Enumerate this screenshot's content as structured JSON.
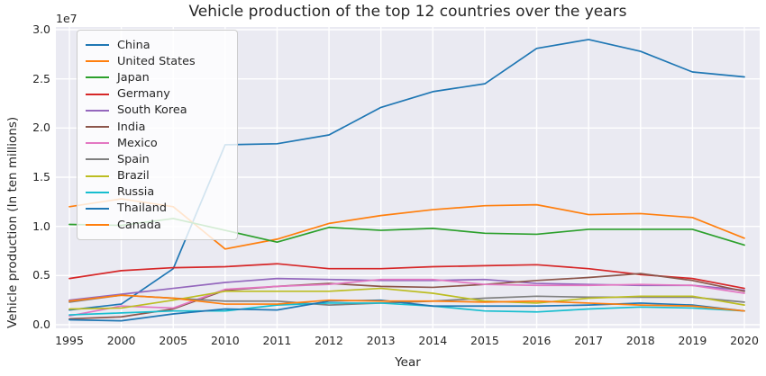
{
  "style": {
    "plot_background": "#eaeaf2",
    "grid_color": "#ffffff",
    "text_color": "#262626",
    "legend_border": "#cccccc"
  },
  "chart_data": {
    "type": "line",
    "title": "Vehicle production of the top 12 countries over the years",
    "xlabel": "Year",
    "ylabel": "Vehicle production (In ten millions)",
    "axis_offset_text": "1e7",
    "y_unit": "values are in units of 1e7 (ten million) vehicles",
    "grid": true,
    "legend_position": "upper left",
    "ylim": [
      -0.04,
      3.03
    ],
    "categories": [
      "1995",
      "2000",
      "2005",
      "2010",
      "2011",
      "2012",
      "2013",
      "2014",
      "2015",
      "2016",
      "2017",
      "2018",
      "2019",
      "2020"
    ],
    "yticks": [
      0.0,
      0.5,
      1.0,
      1.5,
      2.0,
      2.5,
      3.0
    ],
    "ytick_labels": [
      "0.0",
      "0.5",
      "1.0",
      "1.5",
      "2.0",
      "2.5",
      "3.0"
    ],
    "series": [
      {
        "name": "China",
        "color": "#1f77b4",
        "values": [
          0.15,
          0.21,
          0.57,
          1.83,
          1.84,
          1.93,
          2.21,
          2.37,
          2.45,
          2.81,
          2.9,
          2.78,
          2.57,
          2.52
        ]
      },
      {
        "name": "United States",
        "color": "#ff7f0e",
        "values": [
          1.2,
          1.28,
          1.2,
          0.77,
          0.87,
          1.03,
          1.11,
          1.17,
          1.21,
          1.22,
          1.12,
          1.13,
          1.09,
          0.88
        ]
      },
      {
        "name": "Japan",
        "color": "#2ca02c",
        "values": [
          1.02,
          1.01,
          1.08,
          0.96,
          0.84,
          0.99,
          0.96,
          0.98,
          0.93,
          0.92,
          0.97,
          0.97,
          0.97,
          0.81
        ]
      },
      {
        "name": "Germany",
        "color": "#d62728",
        "values": [
          0.47,
          0.55,
          0.58,
          0.59,
          0.62,
          0.57,
          0.57,
          0.59,
          0.6,
          0.61,
          0.57,
          0.51,
          0.47,
          0.37
        ]
      },
      {
        "name": "South Korea",
        "color": "#9467bd",
        "values": [
          0.25,
          0.31,
          0.37,
          0.43,
          0.47,
          0.46,
          0.45,
          0.45,
          0.46,
          0.42,
          0.41,
          0.4,
          0.4,
          0.35
        ]
      },
      {
        "name": "India",
        "color": "#8c564b",
        "values": [
          0.06,
          0.08,
          0.16,
          0.35,
          0.39,
          0.42,
          0.39,
          0.38,
          0.41,
          0.45,
          0.48,
          0.52,
          0.45,
          0.34
        ]
      },
      {
        "name": "Mexico",
        "color": "#e377c2",
        "values": [
          0.09,
          0.19,
          0.17,
          0.36,
          0.39,
          0.41,
          0.46,
          0.46,
          0.41,
          0.4,
          0.4,
          0.41,
          0.4,
          0.32
        ]
      },
      {
        "name": "Spain",
        "color": "#7f7f7f",
        "values": [
          0.23,
          0.3,
          0.27,
          0.24,
          0.24,
          0.2,
          0.22,
          0.24,
          0.27,
          0.29,
          0.28,
          0.28,
          0.28,
          0.23
        ]
      },
      {
        "name": "Brazil",
        "color": "#bcbd22",
        "values": [
          0.16,
          0.17,
          0.25,
          0.34,
          0.34,
          0.34,
          0.37,
          0.32,
          0.24,
          0.22,
          0.27,
          0.29,
          0.29,
          0.2
        ]
      },
      {
        "name": "Russia",
        "color": "#17becf",
        "values": [
          0.1,
          0.12,
          0.14,
          0.14,
          0.2,
          0.22,
          0.22,
          0.19,
          0.14,
          0.13,
          0.16,
          0.18,
          0.17,
          0.14
        ]
      },
      {
        "name": "Thailand",
        "color": "#1f77b4",
        "values": [
          0.05,
          0.04,
          0.11,
          0.16,
          0.15,
          0.24,
          0.25,
          0.19,
          0.19,
          0.19,
          0.2,
          0.22,
          0.2,
          0.14
        ]
      },
      {
        "name": "Canada",
        "color": "#ff7f0e",
        "values": [
          0.24,
          0.3,
          0.27,
          0.21,
          0.21,
          0.25,
          0.24,
          0.24,
          0.23,
          0.24,
          0.22,
          0.2,
          0.19,
          0.14
        ]
      }
    ]
  }
}
